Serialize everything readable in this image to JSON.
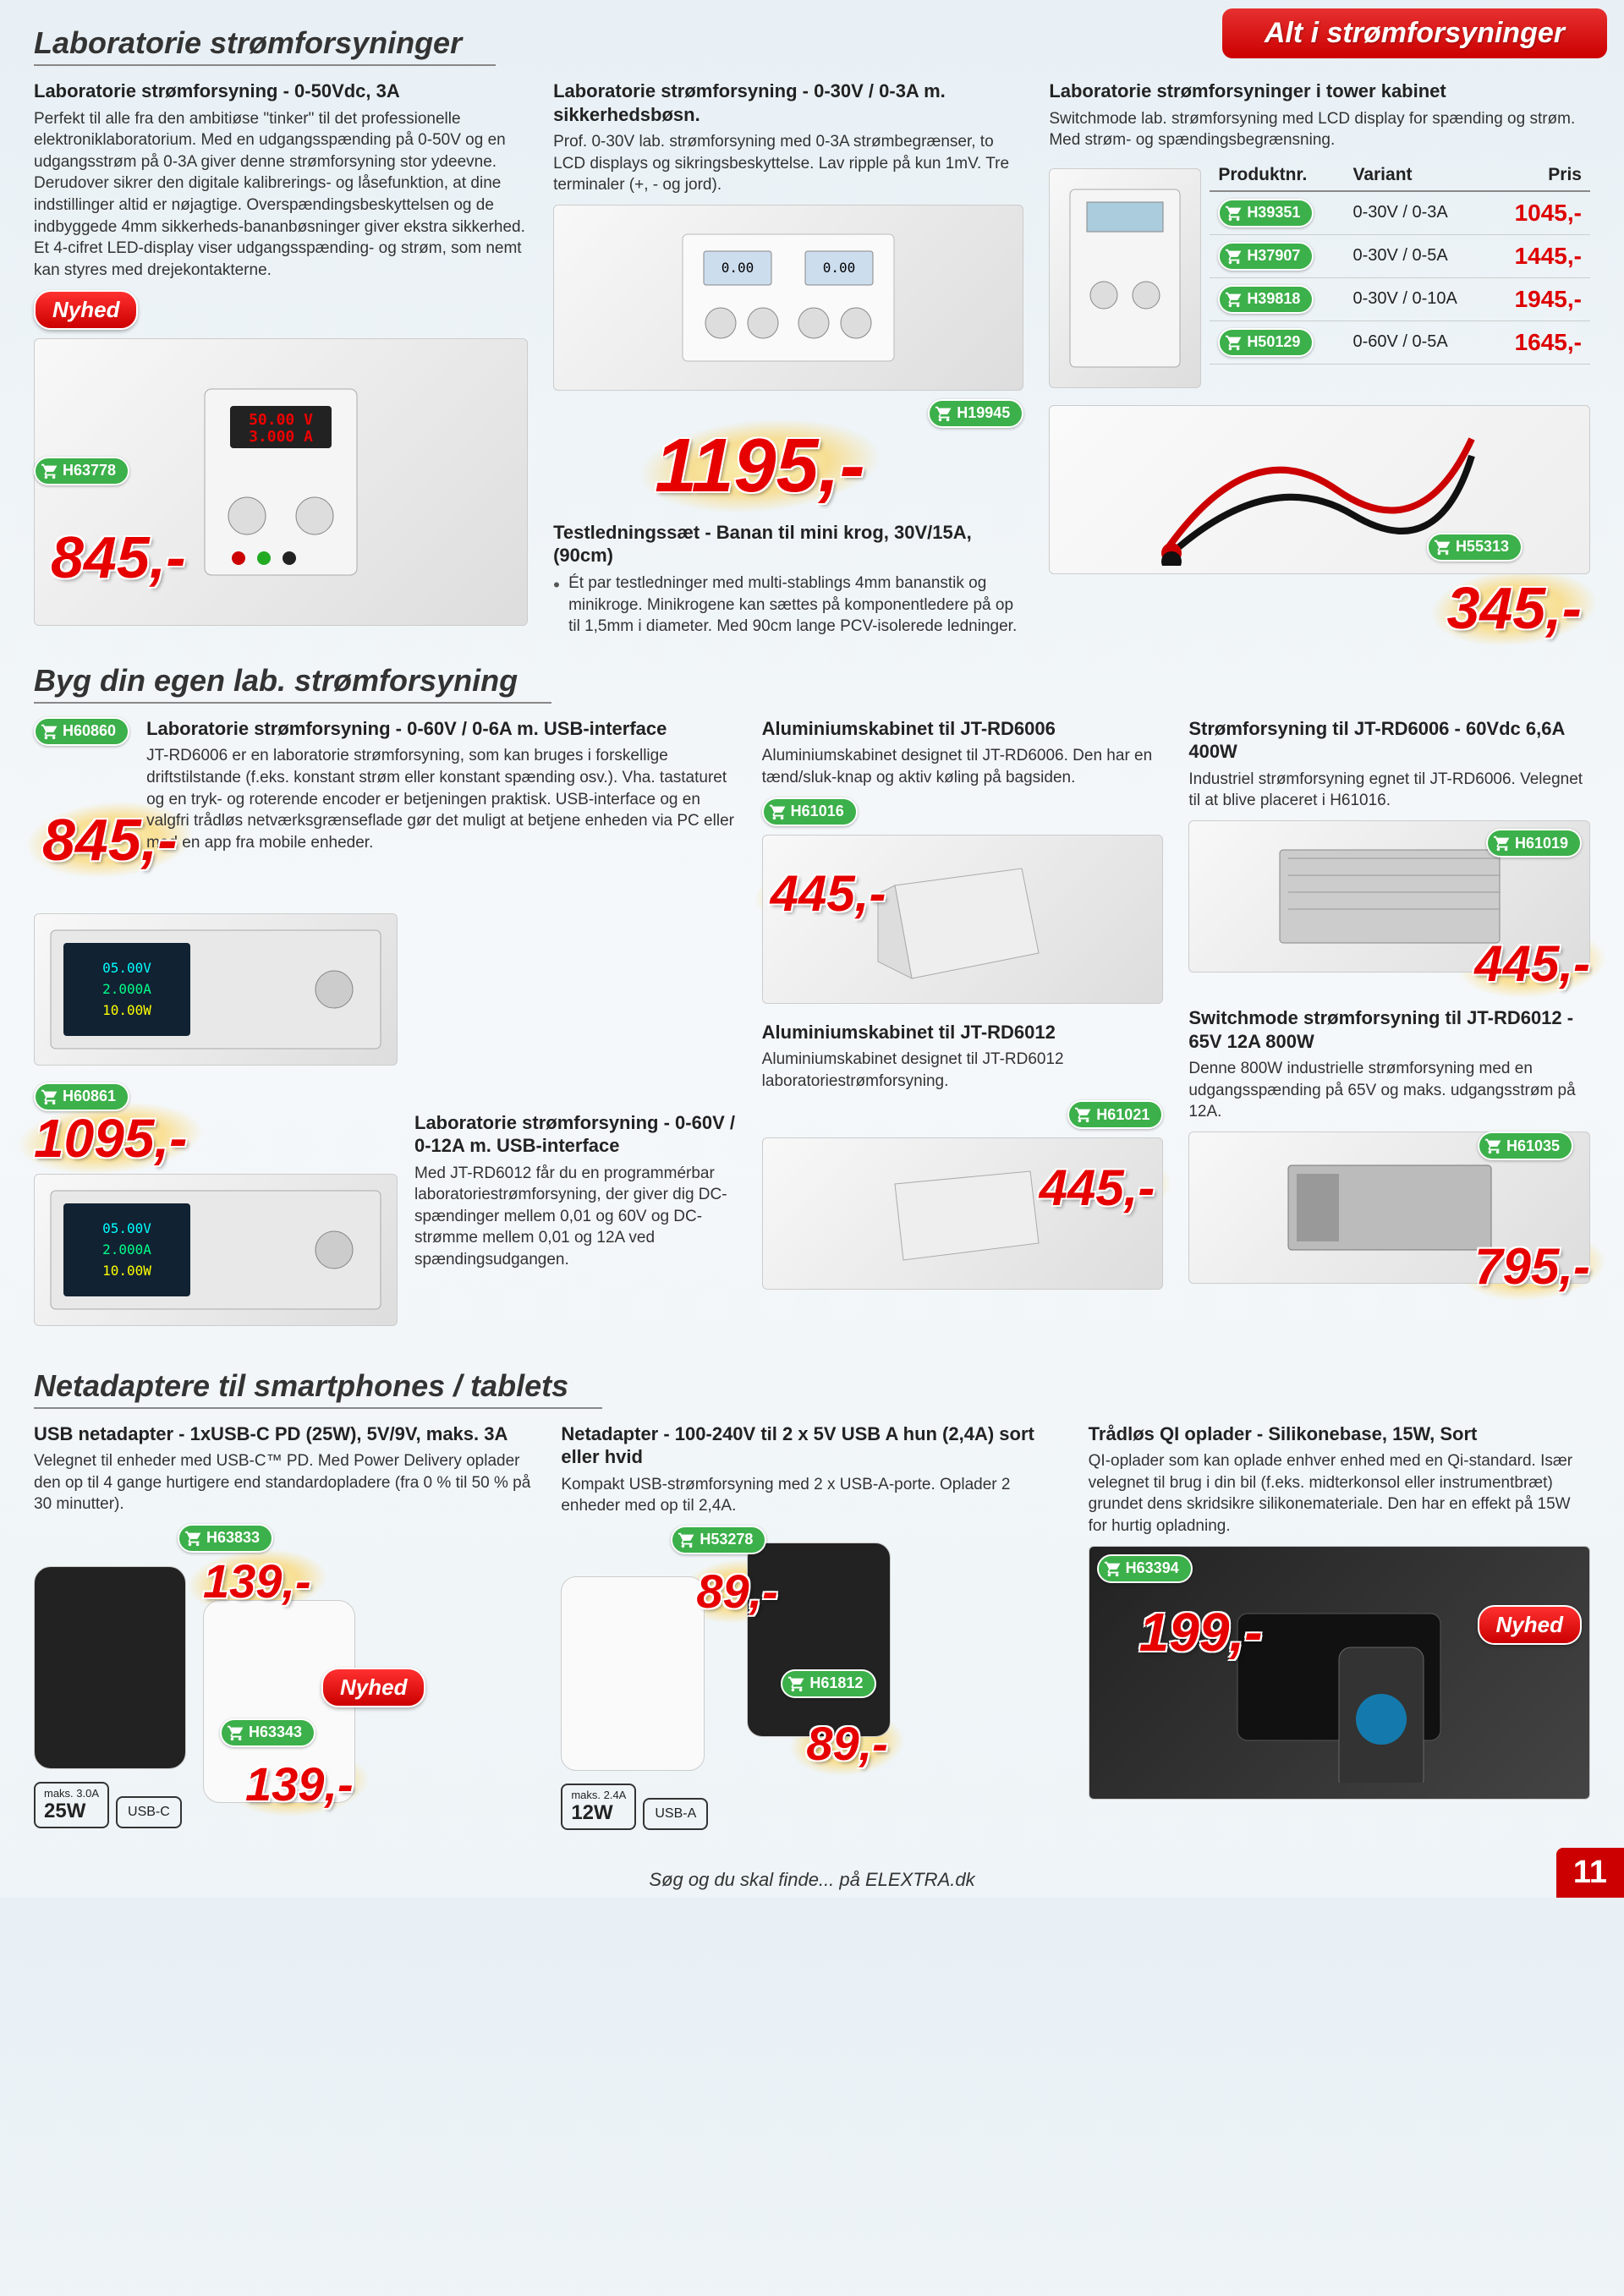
{
  "header_banner": "Alt i strømforsyninger",
  "section1_title": "Laboratorie strømforsyninger",
  "section2_title": "Byg din egen lab. strømforsyning",
  "section3_title": "Netadaptere til smartphones / tablets",
  "nyhed_label": "Nyhed",
  "footer": "Søg og du skal finde... på ELEXTRA.dk",
  "page_number": "11",
  "p1": {
    "title": "Laboratorie strømforsyning - 0-50Vdc, 3A",
    "desc": "Perfekt til alle fra den ambitiøse \"tinker\" til det professionelle elektroniklaboratorium. Med en udgangsspænding på 0-50V og en udgangsstrøm på 0-3A giver denne strømforsyning stor ydeevne. Derudover sikrer den digitale kalibrerings- og låsefunktion, at dine indstillinger altid er nøjagtige. Overspændingsbeskyttelsen og de indbyggede 4mm sikkerheds-bananbøsninger giver ekstra sikkerhed. Et 4-cifret LED-display viser udgangsspænding- og strøm, som nemt kan styres med drejekontakterne.",
    "sku": "H63778",
    "price": "845,-"
  },
  "p2": {
    "title": "Laboratorie strømforsyning - 0-30V / 0-3A m. sikkerhedsbøsn.",
    "desc": "Prof. 0-30V lab. strømforsyning med 0-3A strømbegrænser, to LCD displays og sikringsbeskyttelse. Lav ripple på kun 1mV. Tre terminaler (+, - og jord).",
    "sku": "H19945",
    "price": "1195,-"
  },
  "p3": {
    "title": "Laboratorie strømforsyninger i tower kabinet",
    "desc": "Switchmode lab. strømforsyning med LCD display for spænding og strøm. Med strøm- og spændingsbegrænsning.",
    "table": {
      "headers": [
        "Produktnr.",
        "Variant",
        "Pris"
      ],
      "rows": [
        {
          "sku": "H39351",
          "variant": "0-30V / 0-3A",
          "price": "1045,-"
        },
        {
          "sku": "H37907",
          "variant": "0-30V / 0-5A",
          "price": "1445,-"
        },
        {
          "sku": "H39818",
          "variant": "0-30V / 0-10A",
          "price": "1945,-"
        },
        {
          "sku": "H50129",
          "variant": "0-60V / 0-5A",
          "price": "1645,-"
        }
      ]
    }
  },
  "p4": {
    "title": "Testledningssæt - Banan til mini krog, 30V/15A, (90cm)",
    "desc": "Ét par testledninger med multi-stablings 4mm bananstik og minikroge. Minikrogene kan sættes på komponentledere på op til 1,5mm i diameter. Med 90cm lange PCV-isolerede ledninger.",
    "sku": "H55313",
    "price": "345,-"
  },
  "p5": {
    "title": "Laboratorie strømforsyning - 0-60V / 0-6A m. USB-interface",
    "desc": "JT-RD6006 er en laboratorie strømforsyning, som kan bruges i forskellige driftstilstande (f.eks. konstant strøm eller konstant spænding osv.). Vha. tastaturet og en tryk- og roterende encoder er betjeningen praktisk. USB-interface og en valgfri trådløs netværksgrænseflade gør det muligt at betjene enheden via PC eller med en app fra mobile enheder.",
    "sku": "H60860",
    "price": "845,-"
  },
  "p6": {
    "title": "Laboratorie strømforsyning - 0-60V / 0-12A m. USB-interface",
    "desc": "Med JT-RD6012 får du en programmérbar laboratoriestrømforsyning, der giver dig DC-spændinger mellem 0,01 og 60V og DC-strømme mellem 0,01 og 12A ved spændingsudgangen.",
    "sku": "H60861",
    "price": "1095,-"
  },
  "p7": {
    "title": "Aluminiumskabinet til JT-RD6006",
    "desc": "Aluminiumskabinet designet til JT-RD6006. Den har en tænd/sluk-knap og aktiv køling på bagsiden.",
    "sku": "H61016",
    "price": "445,-"
  },
  "p8": {
    "title": "Aluminiumskabinet til JT-RD6012",
    "desc": "Aluminiumskabinet designet til JT-RD6012 laboratoriestrømforsyning.",
    "sku": "H61021",
    "price": "445,-"
  },
  "p9": {
    "title": "Strømforsyning til JT-RD6006 - 60Vdc 6,6A 400W",
    "desc": "Industriel strømforsyning egnet til JT-RD6006. Velegnet til at blive placeret i H61016.",
    "sku": "H61019",
    "price": "445,-"
  },
  "p10": {
    "title": "Switchmode strømforsyning til JT-RD6012 - 65V 12A 800W",
    "desc": "Denne 800W industrielle strømforsyning med en udgangsspænding på 65V og maks. udgangsstrøm på 12A.",
    "sku": "H61035",
    "price": "795,-"
  },
  "p11": {
    "title": "USB netadapter - 1xUSB-C PD (25W), 5V/9V, maks. 3A",
    "desc": "Velegnet til enheder med USB-C™ PD. Med Power Delivery oplader den op til 4 gange hurtigere end standardopladere (fra 0 % til 50 % på 30 minutter).",
    "sku_a": "H63833",
    "price_a": "139,-",
    "sku_b": "H63343",
    "price_b": "139,-",
    "spec_a": "maks. 3.0A",
    "spec_b": "25W",
    "spec_c": "USB-C"
  },
  "p12": {
    "title": "Netadapter - 100-240V til 2 x 5V USB A hun (2,4A) sort eller hvid",
    "desc": "Kompakt USB-strømforsyning med 2 x USB-A-porte. Oplader 2 enheder med op til 2,4A.",
    "sku_a": "H53278",
    "price_a": "89,-",
    "sku_b": "H61812",
    "price_b": "89,-",
    "spec_a": "maks. 2.4A",
    "spec_b": "12W",
    "spec_c": "USB-A"
  },
  "p13": {
    "title": "Trådløs QI oplader - Silikonebase, 15W, Sort",
    "desc": "QI-oplader som kan oplade enhver enhed med en Qi-standard. Især velegnet til brug i din bil (f.eks. midterkonsol eller instrumentbræt) grundet dens skridsikre silikonemateriale. Den har en effekt på 15W for hurtig opladning.",
    "sku": "H63394",
    "price": "199,-"
  }
}
